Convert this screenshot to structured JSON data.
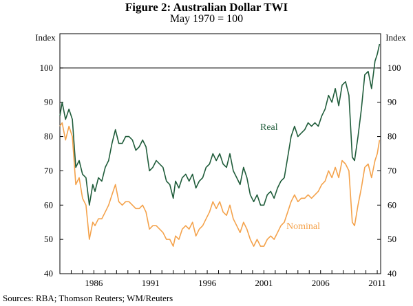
{
  "title": "Figure 2: Australian Dollar TWI",
  "subtitle": "May 1970 = 100",
  "source": "Sources:  RBA; Thomson Reuters; WM/Reuters",
  "chart_data": {
    "type": "line",
    "title": "Figure 2: Australian Dollar TWI",
    "subtitle": "May 1970 = 100",
    "xlabel": "",
    "ylabel_left": "Index",
    "ylabel_right": "Index",
    "xlim": [
      1983.0,
      2011.3
    ],
    "ylim": [
      40,
      110
    ],
    "yticks": [
      40,
      50,
      60,
      70,
      80,
      90,
      100
    ],
    "xticks": [
      1986,
      1991,
      1996,
      2001,
      2006,
      2011
    ],
    "reference_line": 100,
    "grid": false,
    "colors": {
      "Real": "#1f5c3a",
      "Nominal": "#f4a24b"
    },
    "series": [
      {
        "name": "Real",
        "label": "Real",
        "x": [
          1983.0,
          1983.2,
          1983.5,
          1983.8,
          1984.1,
          1984.4,
          1984.7,
          1985.0,
          1985.3,
          1985.6,
          1985.9,
          1986.1,
          1986.4,
          1986.7,
          1987.0,
          1987.3,
          1987.6,
          1987.9,
          1988.2,
          1988.5,
          1988.8,
          1989.1,
          1989.4,
          1989.7,
          1990.0,
          1990.3,
          1990.6,
          1990.9,
          1991.2,
          1991.5,
          1991.8,
          1992.1,
          1992.4,
          1992.7,
          1993.0,
          1993.2,
          1993.5,
          1993.8,
          1994.1,
          1994.4,
          1994.7,
          1995.0,
          1995.3,
          1995.6,
          1995.9,
          1996.2,
          1996.5,
          1996.8,
          1997.1,
          1997.4,
          1997.7,
          1998.0,
          1998.3,
          1998.6,
          1998.9,
          1999.2,
          1999.5,
          1999.8,
          2000.1,
          2000.4,
          2000.7,
          2001.0,
          2001.3,
          2001.6,
          2001.9,
          2002.2,
          2002.5,
          2002.8,
          2003.1,
          2003.4,
          2003.7,
          2004.0,
          2004.3,
          2004.6,
          2004.9,
          2005.2,
          2005.5,
          2005.8,
          2006.1,
          2006.4,
          2006.7,
          2007.0,
          2007.3,
          2007.6,
          2007.9,
          2008.2,
          2008.5,
          2008.8,
          2009.0,
          2009.3,
          2009.6,
          2009.9,
          2010.2,
          2010.5,
          2010.8,
          2011.0,
          2011.2
        ],
        "values": [
          86,
          90,
          85,
          88,
          85,
          71,
          73,
          69,
          68,
          60,
          66,
          64,
          68,
          67,
          71,
          73,
          78,
          82,
          78,
          78,
          80,
          80,
          79,
          76,
          77,
          79,
          77,
          70,
          71,
          73,
          72,
          71,
          67,
          66,
          62,
          67,
          65,
          68,
          69,
          67,
          69,
          65,
          67,
          68,
          71,
          72,
          75,
          73,
          75,
          72,
          71,
          75,
          70,
          68,
          66,
          71,
          68,
          63,
          61,
          63,
          60,
          60,
          63,
          64,
          62,
          65,
          67,
          68,
          74,
          80,
          83,
          80,
          81,
          82,
          84,
          83,
          84,
          83,
          86,
          88,
          92,
          90,
          94,
          89,
          95,
          96,
          92,
          74,
          73,
          80,
          88,
          98,
          99,
          94,
          102,
          104,
          107
        ]
      },
      {
        "name": "Nominal",
        "label": "Nominal",
        "x": [
          1983.0,
          1983.2,
          1983.5,
          1983.8,
          1984.1,
          1984.4,
          1984.7,
          1985.0,
          1985.3,
          1985.6,
          1985.9,
          1986.1,
          1986.4,
          1986.7,
          1987.0,
          1987.3,
          1987.6,
          1987.9,
          1988.2,
          1988.5,
          1988.8,
          1989.1,
          1989.4,
          1989.7,
          1990.0,
          1990.3,
          1990.6,
          1990.9,
          1991.2,
          1991.5,
          1991.8,
          1992.1,
          1992.4,
          1992.7,
          1993.0,
          1993.2,
          1993.5,
          1993.8,
          1994.1,
          1994.4,
          1994.7,
          1995.0,
          1995.3,
          1995.6,
          1995.9,
          1996.2,
          1996.5,
          1996.8,
          1997.1,
          1997.4,
          1997.7,
          1998.0,
          1998.3,
          1998.6,
          1998.9,
          1999.2,
          1999.5,
          1999.8,
          2000.1,
          2000.4,
          2000.7,
          2001.0,
          2001.3,
          2001.6,
          2001.9,
          2002.2,
          2002.5,
          2002.8,
          2003.1,
          2003.4,
          2003.7,
          2004.0,
          2004.3,
          2004.6,
          2004.9,
          2005.2,
          2005.5,
          2005.8,
          2006.1,
          2006.4,
          2006.7,
          2007.0,
          2007.3,
          2007.6,
          2007.9,
          2008.2,
          2008.5,
          2008.8,
          2009.0,
          2009.3,
          2009.6,
          2009.9,
          2010.2,
          2010.5,
          2010.8,
          2011.0,
          2011.2
        ],
        "values": [
          83,
          84,
          79,
          83,
          80,
          66,
          68,
          62,
          60,
          50,
          55,
          54,
          56,
          56,
          58,
          60,
          63,
          66,
          61,
          60,
          61,
          61,
          60,
          59,
          59,
          60,
          58,
          53,
          54,
          54,
          53,
          52,
          50,
          50,
          48,
          51,
          50,
          53,
          54,
          53,
          55,
          51,
          53,
          54,
          56,
          58,
          61,
          59,
          61,
          58,
          57,
          60,
          56,
          54,
          52,
          55,
          53,
          50,
          48,
          50,
          48,
          48,
          50,
          51,
          50,
          52,
          54,
          55,
          58,
          61,
          63,
          61,
          62,
          62,
          63,
          62,
          63,
          64,
          66,
          67,
          70,
          68,
          71,
          68,
          73,
          72,
          70,
          55,
          54,
          60,
          65,
          71,
          72,
          68,
          73,
          75,
          79
        ]
      }
    ]
  }
}
